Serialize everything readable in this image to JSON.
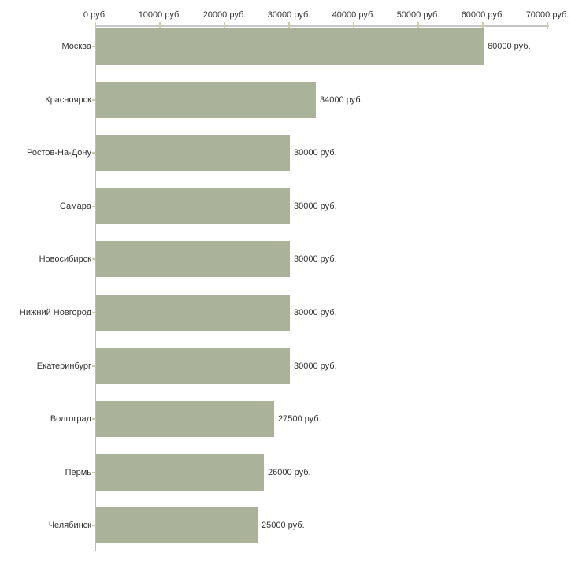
{
  "chart_data": {
    "type": "bar",
    "orientation": "horizontal",
    "title": "",
    "legend": "none",
    "grid": false,
    "categories": [
      "Москва",
      "Красноярск",
      "Ростов-На-Дону",
      "Самара",
      "Новосибирск",
      "Нижний Новгород",
      "Екатеринбург",
      "Волгоград",
      "Пермь",
      "Челябинск"
    ],
    "values": [
      60000,
      34000,
      30000,
      30000,
      30000,
      30000,
      30000,
      27500,
      26000,
      25000
    ],
    "value_labels": [
      "60000 руб.",
      "34000 руб.",
      "30000 руб.",
      "30000 руб.",
      "30000 руб.",
      "30000 руб.",
      "30000 руб.",
      "27500 руб.",
      "26000 руб.",
      "25000 руб."
    ],
    "x_axis": {
      "position": "top",
      "range": [
        0,
        70000
      ],
      "ticks": [
        0,
        10000,
        20000,
        30000,
        40000,
        50000,
        60000,
        70000
      ],
      "tick_labels": [
        "0 руб.",
        "10000 руб.",
        "20000 руб.",
        "30000 руб.",
        "40000 руб.",
        "50000 руб.",
        "60000 руб.",
        "70000 руб."
      ]
    },
    "colors": {
      "bar": "#abb29a",
      "axis_line_x": "#c6c6c6",
      "axis_line_y": "#bcbcbc",
      "tick_mark": "#cfcca3",
      "text": "#333333",
      "background": "#ffffff"
    }
  }
}
